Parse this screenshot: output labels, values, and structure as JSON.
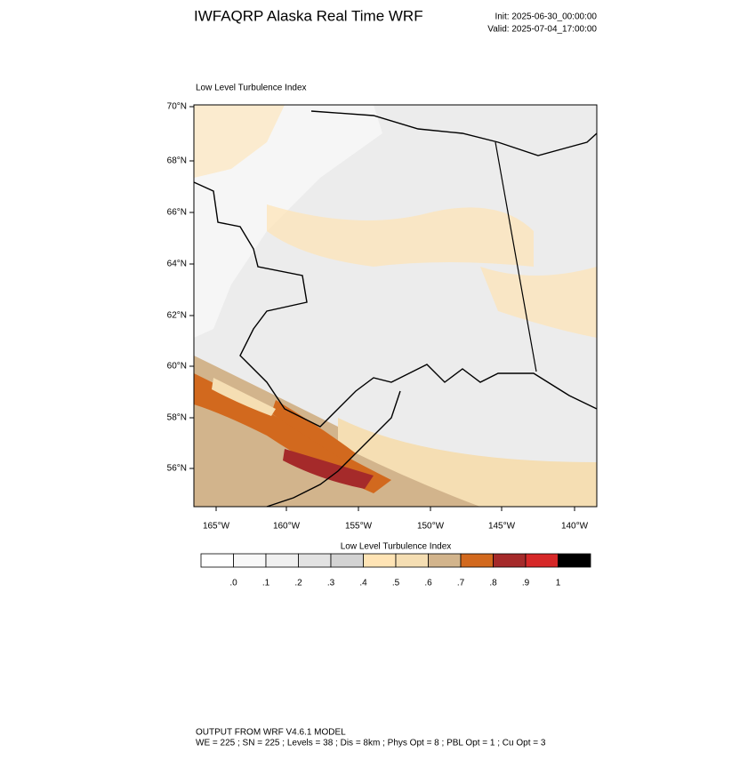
{
  "header": {
    "title": "IWFAQRP Alaska Real Time WRF",
    "init": "Init: 2025-06-30_00:00:00",
    "valid": "Valid: 2025-07-04_17:00:00"
  },
  "map": {
    "title": "Low Level Turbulence Index",
    "lat_labels": [
      "70°N",
      "68°N",
      "66°N",
      "64°N",
      "62°N",
      "60°N",
      "58°N",
      "56°N"
    ],
    "lon_labels": [
      "165°W",
      "160°W",
      "155°W",
      "150°W",
      "145°W",
      "140°W"
    ]
  },
  "colorbar": {
    "title": "Low Level Turbulence Index",
    "colors": [
      "#ffffff",
      "#f8f8f8",
      "#f0f0f0",
      "#e2e2e2",
      "#d3d3d3",
      "#ffe4b5",
      "#f5deb3",
      "#d2b48c",
      "#d2691e",
      "#a52a2a",
      "#d62828",
      "#000000"
    ],
    "labels": [
      ".0",
      ".1",
      ".2",
      ".3",
      ".4",
      ".5",
      ".6",
      ".7",
      ".8",
      ".9",
      "1"
    ]
  },
  "footer": {
    "line1": "OUTPUT FROM WRF V4.6.1 MODEL",
    "line2": "WE = 225 ; SN = 225 ; Levels = 38 ; Dis = 8km ; Phys Opt = 8 ; PBL Opt = 1 ; Cu Opt = 3"
  }
}
